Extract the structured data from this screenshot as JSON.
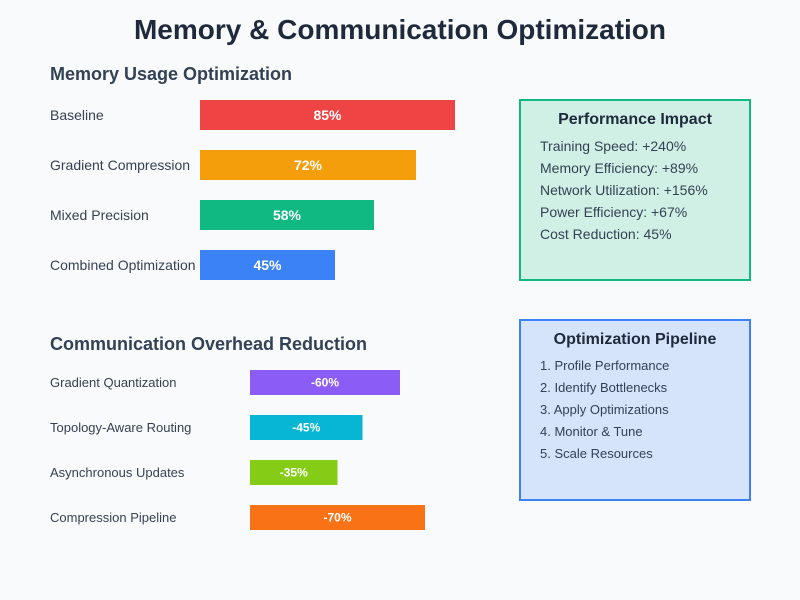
{
  "title": "Memory & Communication Optimization",
  "chart_data": [
    {
      "type": "bar",
      "orientation": "horizontal",
      "title": "Memory Usage Optimization",
      "unit": "%",
      "categories": [
        "Baseline",
        "Gradient Compression",
        "Mixed Precision",
        "Combined Optimization"
      ],
      "values": [
        85,
        72,
        58,
        45
      ],
      "labels": [
        "85%",
        "72%",
        "58%",
        "45%"
      ],
      "colors": [
        "#ef4444",
        "#f59e0b",
        "#10b981",
        "#3b82f6"
      ],
      "xlim": [
        0,
        100
      ],
      "grid": false
    },
    {
      "type": "bar",
      "orientation": "horizontal",
      "title": "Communication Overhead Reduction",
      "unit": "%",
      "categories": [
        "Gradient Quantization",
        "Topology-Aware Routing",
        "Asynchronous Updates",
        "Compression Pipeline"
      ],
      "values": [
        -60,
        -45,
        -35,
        -70
      ],
      "labels": [
        "-60%",
        "-45%",
        "-35%",
        "-70%"
      ],
      "colors": [
        "#8b5cf6",
        "#06b6d4",
        "#84cc16",
        "#f97316"
      ],
      "xlim": [
        0,
        -100
      ],
      "grid": false
    }
  ],
  "impact_panel": {
    "title": "Performance Impact",
    "items": [
      "Training Speed: +240%",
      "Memory Efficiency: +89%",
      "Network Utilization: +156%",
      "Power Efficiency: +67%",
      "Cost Reduction: 45%"
    ],
    "bg_color": "#d1f0e5",
    "border_color": "#10b981"
  },
  "pipeline_panel": {
    "title": "Optimization Pipeline",
    "items": [
      "1. Profile Performance",
      "2. Identify Bottlenecks",
      "3. Apply Optimizations",
      "4. Monitor & Tune",
      "5. Scale Resources"
    ],
    "bg_color": "#d6e4fb",
    "border_color": "#3b82f6"
  }
}
